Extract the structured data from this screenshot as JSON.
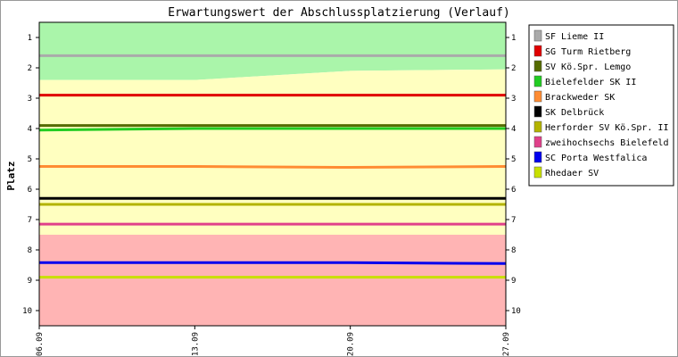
{
  "chart_data": {
    "type": "line",
    "title": "Erwartungswert der Abschlussplatzierung (Verlauf)",
    "ylabel": "Platz",
    "xlabel": "",
    "ylim": [
      0.5,
      10.5
    ],
    "y_inverted": true,
    "yticks": [
      1,
      2,
      3,
      4,
      5,
      6,
      7,
      8,
      9,
      10
    ],
    "x": [
      "06.09",
      "13.09",
      "20.09",
      "27.09"
    ],
    "legend_position": "right",
    "zones": [
      {
        "name": "aufstieg",
        "color": "#aaf5aa",
        "top": [
          0.5,
          0.5,
          0.5,
          0.5
        ],
        "bottom": [
          2.4,
          2.4,
          2.1,
          2.05
        ]
      },
      {
        "name": "mitte",
        "color": "#ffffc0",
        "top": [
          2.4,
          2.4,
          2.1,
          2.05
        ],
        "bottom": [
          7.5,
          7.5,
          7.5,
          7.5
        ]
      },
      {
        "name": "abstieg",
        "color": "#ffb4b4",
        "top": [
          7.5,
          7.5,
          7.5,
          7.5
        ],
        "bottom": [
          10.5,
          10.5,
          10.5,
          10.5
        ]
      }
    ],
    "series": [
      {
        "name": "SF Lieme II",
        "color": "#aaaaaa",
        "values": [
          1.6,
          1.6,
          1.6,
          1.6
        ]
      },
      {
        "name": "SG Turm Rietberg",
        "color": "#e00000",
        "values": [
          2.9,
          2.9,
          2.9,
          2.9
        ]
      },
      {
        "name": "SV Kö.Spr. Lemgo",
        "color": "#556b00",
        "values": [
          3.9,
          3.9,
          3.9,
          3.9
        ]
      },
      {
        "name": "Bielefelder SK II",
        "color": "#22cc22",
        "values": [
          4.05,
          4.0,
          4.0,
          4.0
        ]
      },
      {
        "name": "Brackweder SK",
        "color": "#ff8c33",
        "values": [
          5.25,
          5.25,
          5.28,
          5.25
        ]
      },
      {
        "name": "SK Delbrück",
        "color": "#000000",
        "values": [
          6.3,
          6.3,
          6.3,
          6.3
        ]
      },
      {
        "name": "Herforder SV Kö.Spr. II",
        "color": "#b3b300",
        "values": [
          6.5,
          6.5,
          6.5,
          6.5
        ]
      },
      {
        "name": "zweihochsechs Bielefeld",
        "color": "#e0408a",
        "values": [
          7.15,
          7.15,
          7.15,
          7.15
        ]
      },
      {
        "name": "SC Porta Westfalica",
        "color": "#0000ee",
        "values": [
          8.42,
          8.42,
          8.42,
          8.45
        ]
      },
      {
        "name": "Rhedaer SV",
        "color": "#c8e000",
        "values": [
          8.9,
          8.9,
          8.9,
          8.9
        ]
      }
    ]
  }
}
